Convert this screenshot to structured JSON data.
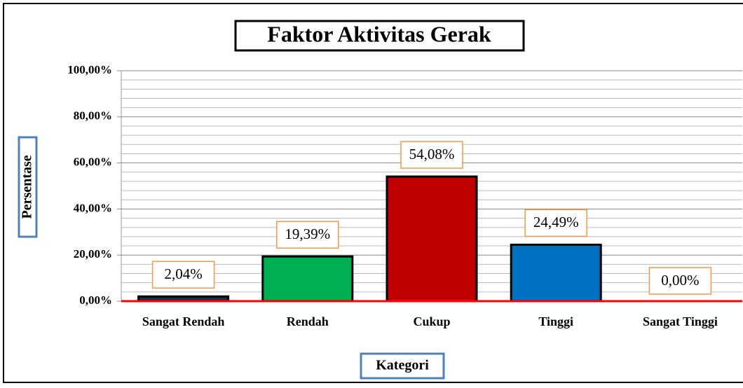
{
  "chart_data": {
    "type": "bar",
    "title": "Faktor Aktivitas Gerak",
    "x_label": "Kategori",
    "y_label": "Persentase",
    "categories": [
      "Sangat Rendah",
      "Rendah",
      "Cukup",
      "Tinggi",
      "Sangat Tinggi"
    ],
    "values": [
      2.04,
      19.39,
      54.08,
      24.49,
      0
    ],
    "value_labels": [
      "2,04%",
      "19,39%",
      "54,08%",
      "24,49%",
      "0,00%"
    ],
    "colors": [
      "#1f2d4e",
      "#00b050",
      "#c00000",
      "#0070c0",
      "#7f7f7f"
    ],
    "ylim": [
      0,
      100
    ],
    "yticks": [
      {
        "value": 0,
        "label": "0,00%"
      },
      {
        "value": 20,
        "label": "20,00%"
      },
      {
        "value": 40,
        "label": "40,00%"
      },
      {
        "value": 60,
        "label": "60,00%"
      },
      {
        "value": 80,
        "label": "80,00%"
      },
      {
        "value": 100,
        "label": "100,00%"
      }
    ],
    "minor_yticks": [
      4,
      8,
      12,
      16,
      24,
      28,
      32,
      36,
      44,
      48,
      52,
      56,
      64,
      68,
      72,
      76,
      84,
      88,
      92,
      96
    ],
    "grid": true
  }
}
